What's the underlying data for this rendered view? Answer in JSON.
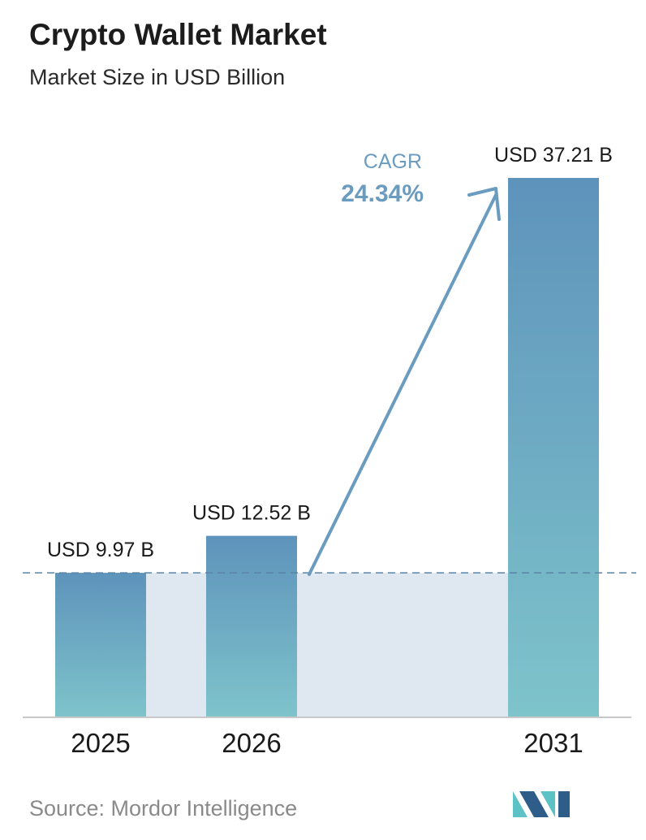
{
  "header": {
    "title": "Crypto Wallet Market",
    "subtitle": "Market Size in USD Billion"
  },
  "chart_data": {
    "type": "bar",
    "categories": [
      "2025",
      "2026",
      "2031"
    ],
    "values": [
      9.97,
      12.52,
      37.21
    ],
    "value_labels": [
      "USD 9.97 B",
      "USD 12.52 B",
      "USD 37.21 B"
    ],
    "ylim": [
      0,
      40
    ],
    "baseline_reference": 9.97,
    "annotation": {
      "label": "CAGR",
      "value": "24.34%"
    },
    "grid": false,
    "legend": "none"
  },
  "footer": {
    "source": "Source: Mordor Intelligence"
  },
  "colors": {
    "bar_top": "#5e93bb",
    "bar_bottom": "#7ec4cb",
    "band": "#dfe8f1",
    "arrow": "#6a9cc0",
    "dashed_line": "#5a84a6",
    "axis": "#c8c8c8",
    "logo_dark": "#2f5d8a",
    "logo_light": "#5cc2c6"
  },
  "icons": {
    "brand": "mordor-intelligence-logo-icon"
  }
}
